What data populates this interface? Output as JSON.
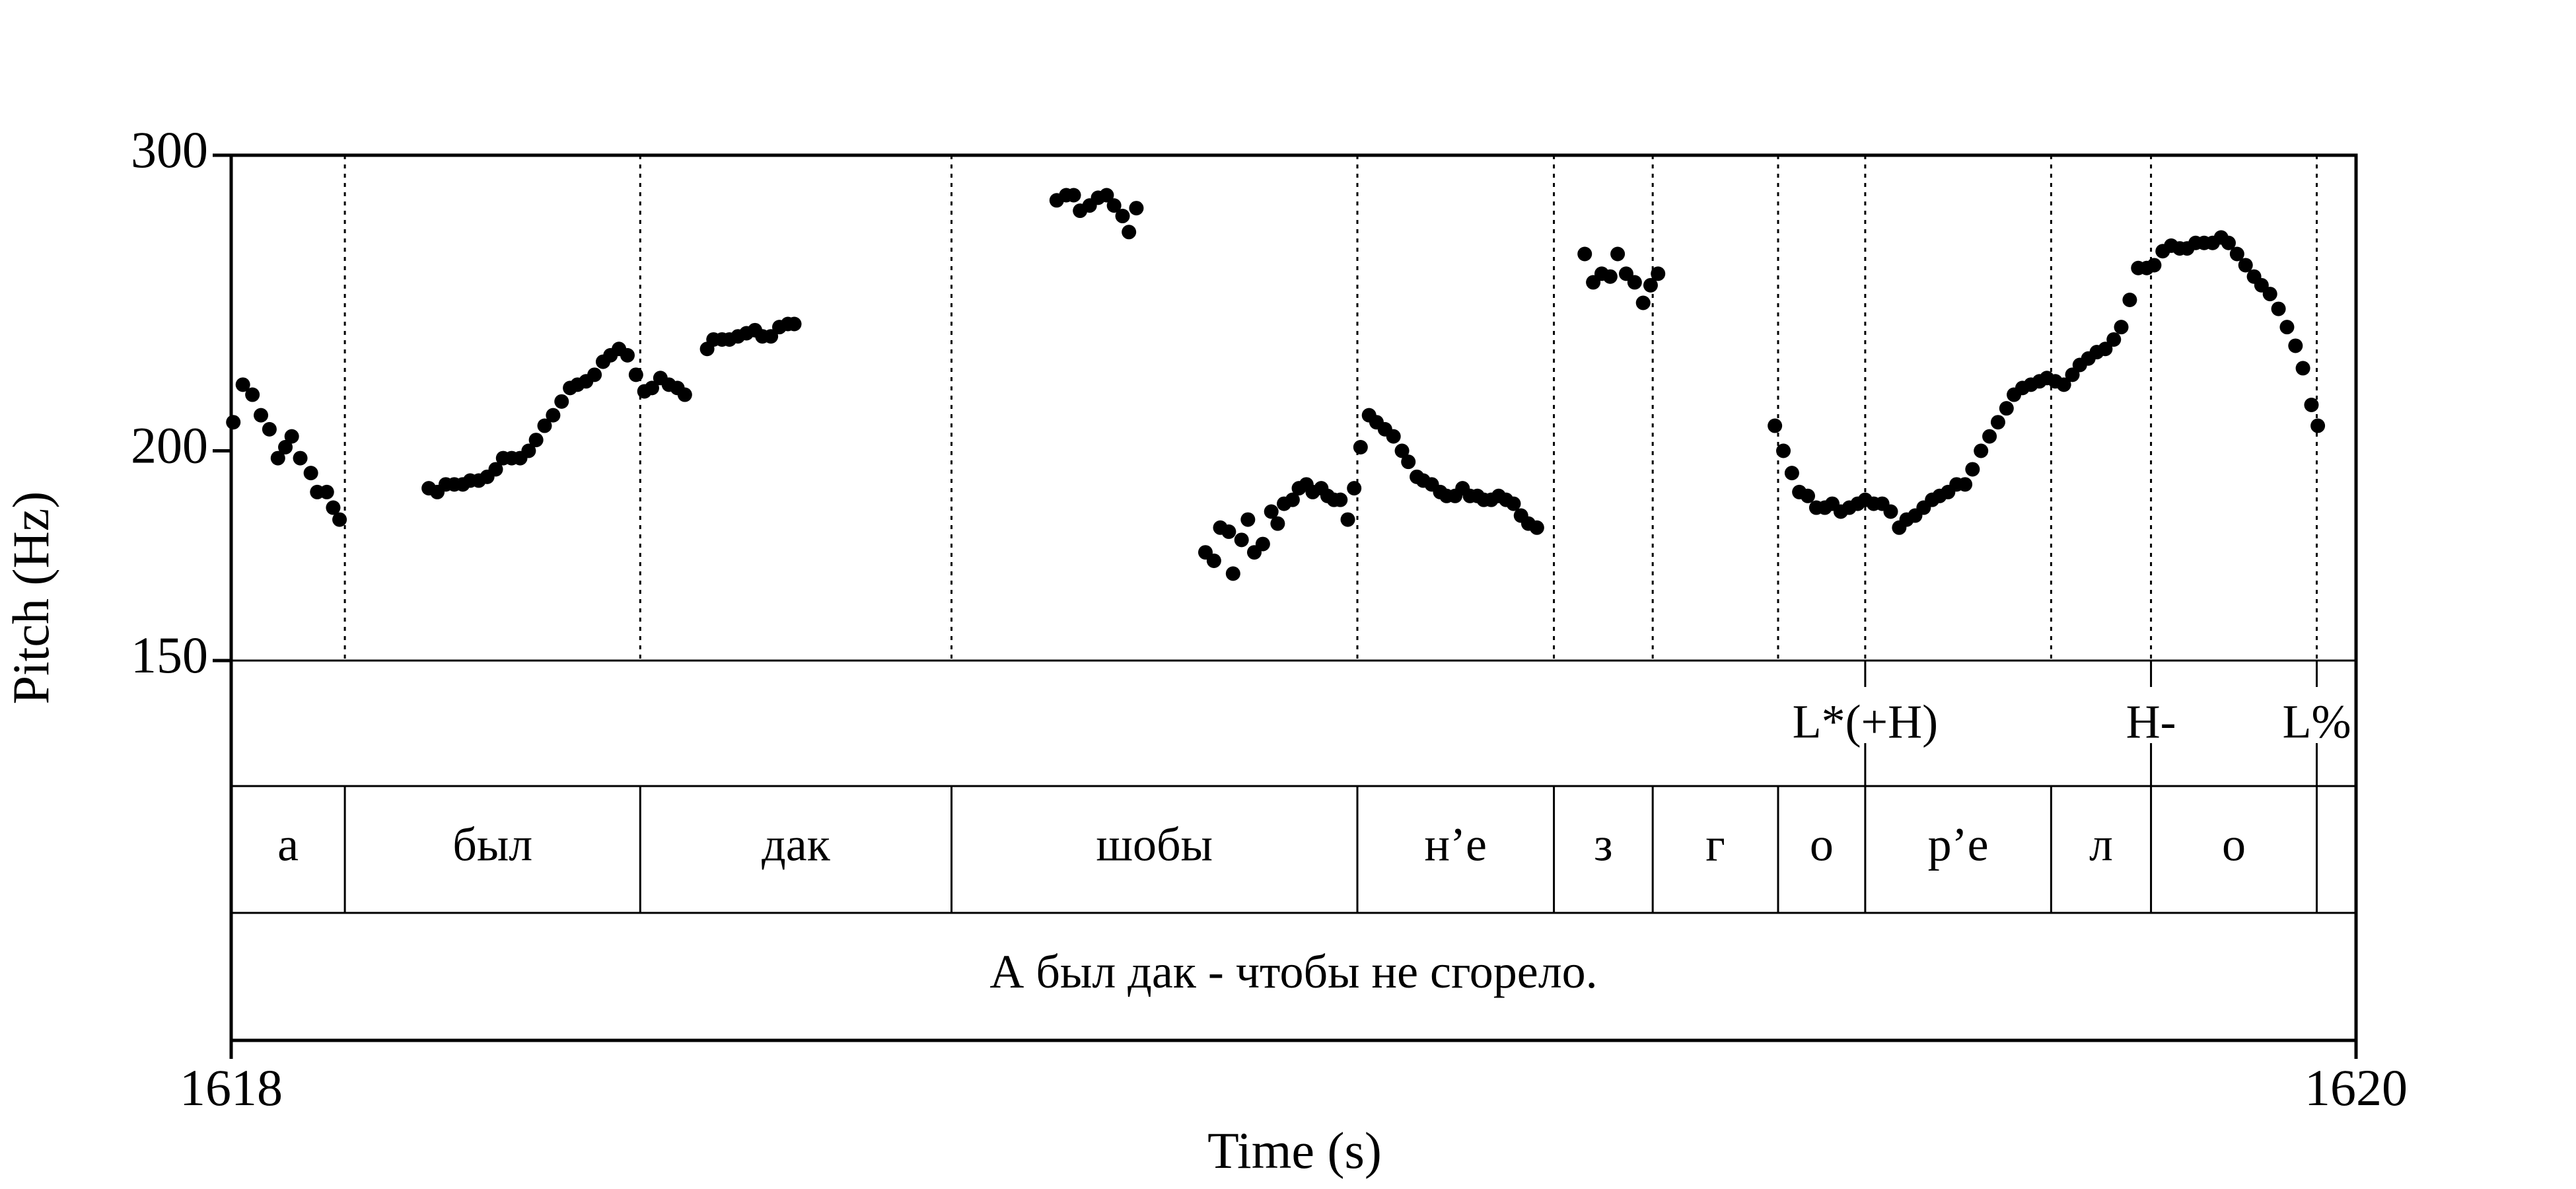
{
  "chart_data": {
    "type": "scatter",
    "x_label": "Time (s)",
    "y_label": "Pitch (Hz)",
    "xlim": [
      1618,
      1620
    ],
    "xticks": [
      1618,
      1620
    ],
    "ylim": [
      150,
      300
    ],
    "yticks": [
      150,
      200,
      300
    ],
    "log_scale": true,
    "color": "#000000",
    "x": [
      1618.002,
      1618.011,
      1618.02,
      1618.028,
      1618.036,
      1618.044,
      1618.051,
      1618.057,
      1618.065,
      1618.075,
      1618.081,
      1618.09,
      1618.096,
      1618.102,
      1618.186,
      1618.194,
      1618.202,
      1618.21,
      1618.218,
      1618.225,
      1618.233,
      1618.241,
      1618.249,
      1618.256,
      1618.264,
      1618.272,
      1618.28,
      1618.287,
      1618.295,
      1618.303,
      1618.311,
      1618.319,
      1618.326,
      1618.334,
      1618.342,
      1618.35,
      1618.357,
      1618.365,
      1618.373,
      1618.381,
      1618.389,
      1618.396,
      1618.404,
      1618.412,
      1618.42,
      1618.427,
      1618.448,
      1618.454,
      1618.462,
      1618.469,
      1618.477,
      1618.485,
      1618.493,
      1618.5,
      1618.508,
      1618.516,
      1618.524,
      1618.53,
      1618.777,
      1618.786,
      1618.793,
      1618.799,
      1618.808,
      1618.816,
      1618.824,
      1618.831,
      1618.839,
      1618.845,
      1618.852,
      1618.917,
      1618.925,
      1618.931,
      1618.939,
      1618.943,
      1618.951,
      1618.957,
      1618.963,
      1618.971,
      1618.979,
      1618.985,
      1618.991,
      1618.999,
      1619.005,
      1619.012,
      1619.018,
      1619.026,
      1619.032,
      1619.038,
      1619.044,
      1619.051,
      1619.057,
      1619.063,
      1619.071,
      1619.078,
      1619.086,
      1619.094,
      1619.102,
      1619.108,
      1619.116,
      1619.122,
      1619.13,
      1619.138,
      1619.144,
      1619.152,
      1619.159,
      1619.166,
      1619.173,
      1619.179,
      1619.186,
      1619.193,
      1619.2,
      1619.207,
      1619.214,
      1619.221,
      1619.229,
      1619.274,
      1619.282,
      1619.29,
      1619.298,
      1619.305,
      1619.313,
      1619.321,
      1619.329,
      1619.336,
      1619.343,
      1619.453,
      1619.461,
      1619.469,
      1619.476,
      1619.484,
      1619.492,
      1619.5,
      1619.507,
      1619.515,
      1619.523,
      1619.531,
      1619.538,
      1619.546,
      1619.554,
      1619.562,
      1619.57,
      1619.577,
      1619.585,
      1619.593,
      1619.601,
      1619.608,
      1619.616,
      1619.624,
      1619.632,
      1619.639,
      1619.647,
      1619.655,
      1619.663,
      1619.671,
      1619.678,
      1619.686,
      1619.694,
      1619.702,
      1619.709,
      1619.717,
      1619.725,
      1619.733,
      1619.74,
      1619.748,
      1619.756,
      1619.764,
      1619.772,
      1619.779,
      1619.787,
      1619.795,
      1619.803,
      1619.81,
      1619.818,
      1619.826,
      1619.834,
      1619.841,
      1619.849,
      1619.857,
      1619.865,
      1619.873,
      1619.88,
      1619.888,
      1619.896,
      1619.904,
      1619.911,
      1619.919,
      1619.927,
      1619.935,
      1619.943,
      1619.95,
      1619.958,
      1619.964
    ],
    "values": [
      208,
      219,
      216,
      210,
      206,
      198,
      201,
      204,
      198,
      194,
      189,
      189,
      185,
      182,
      190,
      189,
      191,
      191,
      191,
      192,
      192,
      193,
      195,
      198,
      198,
      198,
      200,
      203,
      207,
      210,
      214,
      218,
      219,
      220,
      222,
      226,
      228,
      230,
      228,
      222,
      217,
      218,
      221,
      219,
      218,
      216,
      230,
      233,
      233,
      233,
      234,
      235,
      236,
      234,
      234,
      237,
      238,
      238,
      282,
      284,
      284,
      278,
      280,
      283,
      284,
      280,
      276,
      270,
      279,
      174,
      172,
      180,
      179,
      169,
      177,
      182,
      174,
      176,
      184,
      181,
      186,
      187,
      190,
      191,
      189,
      190,
      188,
      187,
      187,
      182,
      190,
      201,
      210,
      208,
      206,
      204,
      200,
      197,
      193,
      192,
      191,
      189,
      188,
      188,
      190,
      188,
      188,
      187,
      187,
      188,
      187,
      186,
      183,
      181,
      180,
      262,
      252,
      255,
      254,
      262,
      255,
      252,
      245,
      251,
      255,
      207,
      200,
      194,
      189,
      188,
      185,
      185,
      186,
      184,
      185,
      186,
      187,
      186,
      186,
      184,
      180,
      182,
      183,
      185,
      187,
      188,
      189,
      191,
      191,
      195,
      200,
      204,
      208,
      212,
      216,
      218,
      219,
      220,
      221,
      220,
      219,
      222,
      225,
      227,
      229,
      230,
      233,
      237,
      246,
      257,
      257,
      258,
      263,
      265,
      264,
      264,
      266,
      266,
      266,
      268,
      266,
      262,
      258,
      254,
      251,
      248,
      243,
      237,
      231,
      224,
      213,
      207
    ],
    "tone_points": {
      "x": [
        1619.538,
        1619.807,
        1619.963
      ],
      "labels": [
        "L*(+H)",
        "H-",
        "L%"
      ]
    },
    "syllables": {
      "boundaries": [
        1618.107,
        1618.385,
        1618.678,
        1619.06,
        1619.245,
        1619.338,
        1619.456,
        1619.538,
        1619.713,
        1619.807,
        1619.963
      ],
      "labels": [
        "а",
        "был",
        "дак",
        "шобы",
        "н’е",
        "з",
        "г",
        "о",
        "р’е",
        "л",
        "о"
      ]
    },
    "sentence": "А был дак - чтобы не сгорело."
  }
}
